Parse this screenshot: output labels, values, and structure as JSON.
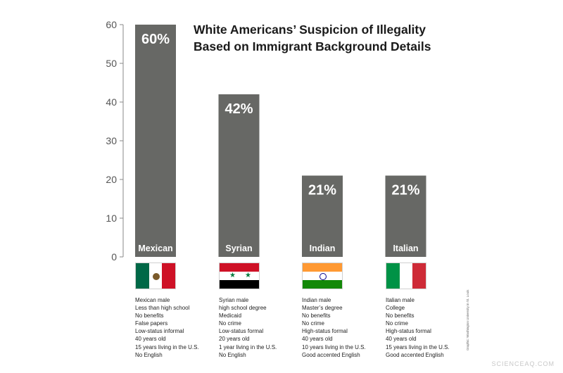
{
  "chart_data": {
    "type": "bar",
    "title_lines": [
      "White Americans’ Suspicion of Illegality",
      "Based on Immigrant Background Details"
    ],
    "categories": [
      "Mexican",
      "Syrian",
      "Indian",
      "Italian"
    ],
    "values": [
      60,
      42,
      21,
      21
    ],
    "value_labels": [
      "60%",
      "42%",
      "21%",
      "21%"
    ],
    "y_ticks": [
      "0",
      "10",
      "20",
      "30",
      "40",
      "50",
      "60"
    ],
    "ylim": [
      0,
      60
    ],
    "xlabel": "",
    "ylabel": "",
    "grid": false,
    "bar_color": "#676865"
  },
  "profiles": [
    {
      "flag": "mexico-flag",
      "details": [
        "Mexican male",
        "Less than high school",
        "No benefits",
        "False papers",
        "Low-status informal",
        "40 years old",
        "15 years living in the U.S.",
        "No English"
      ]
    },
    {
      "flag": "syria-flag",
      "details": [
        "Syrian male",
        "high school degree",
        "Medicaid",
        "No crime",
        "Low-status formal",
        "20 years old",
        "1 year living in the U.S.",
        "No English"
      ]
    },
    {
      "flag": "india-flag",
      "details": [
        "Indian male",
        "Master’s degree",
        "No benefits",
        "No crime",
        "High-status formal",
        "40 years old",
        "10 years living in the U.S.",
        "Good accented English"
      ]
    },
    {
      "flag": "italy-flag",
      "details": [
        "Italian male",
        "College",
        "No benefits",
        "No crime",
        "High-status formal",
        "40 years old",
        "15 years living in the U.S.",
        "Good accented English"
      ]
    }
  ],
  "credit": "Graphic: Washington University in St. Louis",
  "watermark": "SCIENCEAQ.COM",
  "colors": {
    "bar": "#676865",
    "axis": "#888888",
    "mexico": [
      "#006847",
      "#ffffff",
      "#ce1126"
    ],
    "syria": [
      "#ce1126",
      "#ffffff",
      "#000000"
    ],
    "india": [
      "#ff9933",
      "#ffffff",
      "#138808"
    ],
    "italy": [
      "#009246",
      "#ffffff",
      "#ce2b37"
    ]
  }
}
